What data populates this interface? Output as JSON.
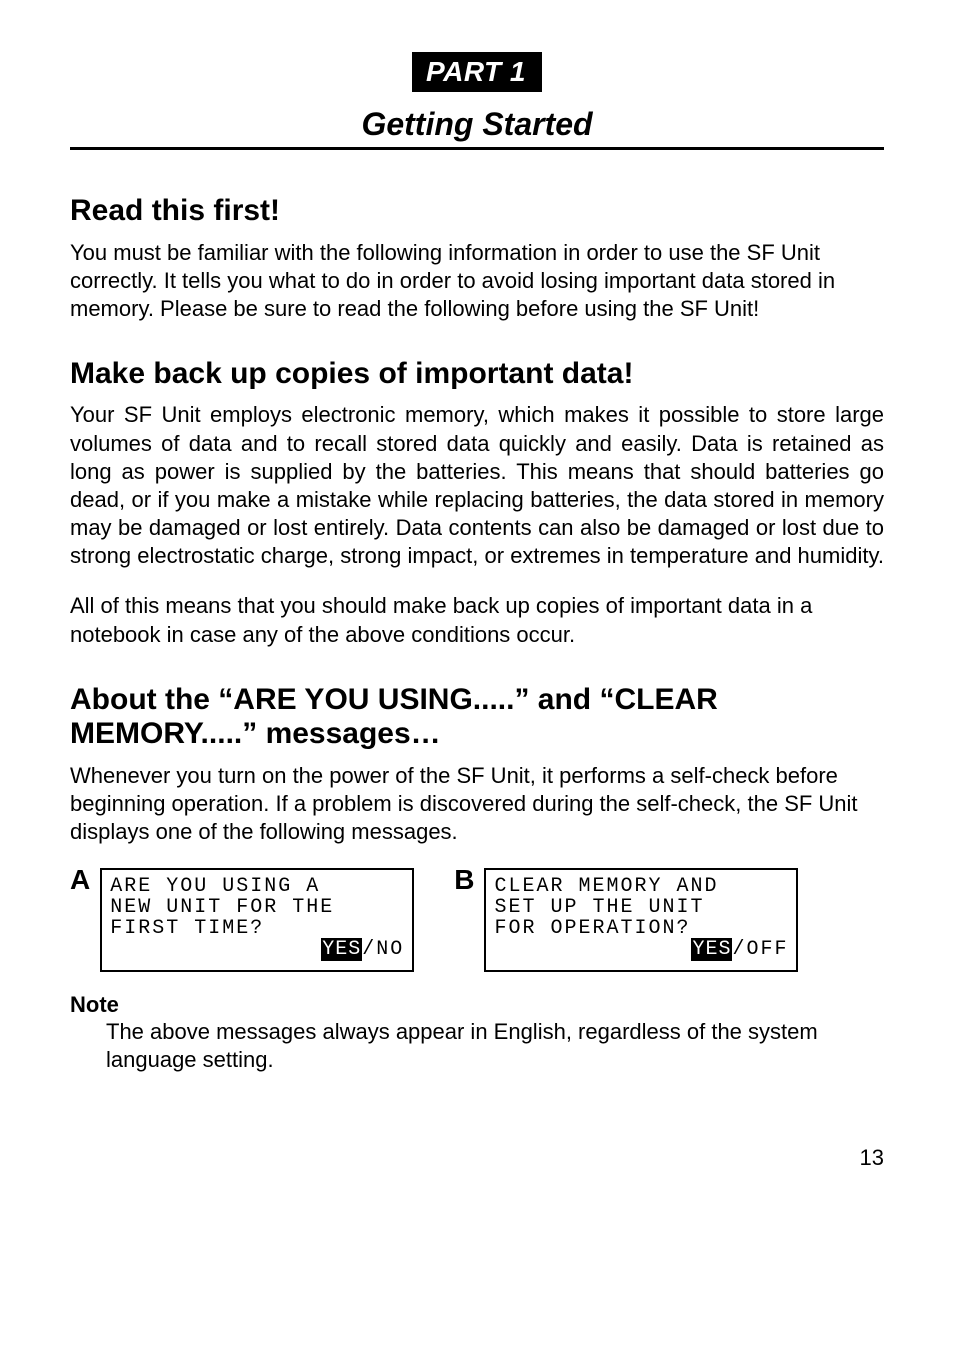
{
  "header": {
    "part_badge": "PART 1",
    "chapter_title": "Getting Started"
  },
  "sections": {
    "read_first": {
      "heading": "Read this first!",
      "body": "You must be familiar with the following information in order to use the SF Unit correctly. It tells you what to do in order to avoid losing important data stored in memory. Please be sure to read the following before using the SF Unit!"
    },
    "backup": {
      "heading": "Make back up copies of important data!",
      "body1": "Your SF Unit employs electronic memory, which makes it possible to store large volumes of data and to recall stored data quickly and easily. Data is retained as long as power is supplied by the batteries. This means that should batteries go dead, or if you make a mistake while replacing batteries, the data stored in memory may be damaged or lost entirely. Data contents can also be damaged or lost due to strong electrostatic charge, strong impact, or extremes in temperature and humidity.",
      "body2": "All of this means that you should make back up copies of important data in a notebook in case any of the above conditions occur."
    },
    "messages": {
      "heading": "About the “ARE YOU USING.....” and “CLEAR MEMORY.....” messages…",
      "body": "Whenever you turn on the power of the SF Unit, it performs a self-check before beginning operation. If a problem is discovered during the self-check, the SF Unit displays one of the following messages."
    }
  },
  "lcd": {
    "a": {
      "label": "A",
      "line1": "ARE YOU USING A",
      "line2": "NEW UNIT FOR THE",
      "line3": "FIRST TIME?",
      "line4_inv": "YES",
      "line4_rest": "/NO"
    },
    "b": {
      "label": "B",
      "line1": "CLEAR MEMORY AND",
      "line2": "SET UP THE UNIT",
      "line3": "FOR OPERATION?",
      "line4_inv": "YES",
      "line4_rest": "/OFF"
    }
  },
  "note": {
    "label": "Note",
    "body": "The above messages always appear in English, regardless of the system language setting."
  },
  "page_number": "13"
}
